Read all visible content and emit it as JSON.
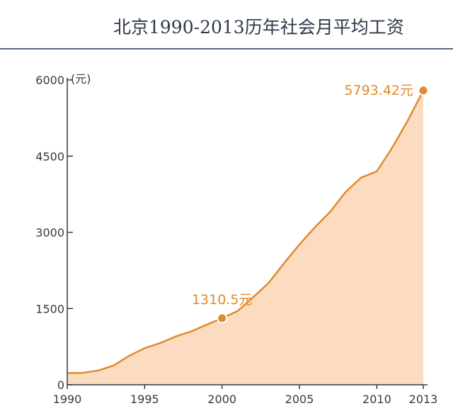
{
  "chart_data": {
    "type": "area",
    "title": "北京1990-2013历年社会月平均工资",
    "ylabel": "(元)",
    "ylim": [
      0,
      6000
    ],
    "yticks": [
      0,
      1500,
      3000,
      4500,
      6000
    ],
    "ytick_labels": [
      "0",
      "1500",
      "3000",
      "4500",
      "6000"
    ],
    "xlim": [
      1990,
      2013
    ],
    "xticks": [
      1990,
      1995,
      2000,
      2005,
      2010,
      2013
    ],
    "xtick_labels": [
      "1990",
      "1995",
      "2000",
      "2005",
      "2010",
      "2013"
    ],
    "series": [
      {
        "x": [
          1990,
          1991,
          1992,
          1993,
          1994,
          1995,
          1996,
          1997,
          1998,
          1999,
          2000,
          2001,
          2002,
          2003,
          2004,
          2005,
          2006,
          2007,
          2008,
          2009,
          2010,
          2011,
          2012,
          2013
        ],
        "values": [
          230,
          235,
          280,
          380,
          570,
          720,
          820,
          950,
          1050,
          1180,
          1310.5,
          1450,
          1720,
          2000,
          2390,
          2760,
          3100,
          3410,
          3800,
          4080,
          4200,
          4670,
          5200,
          5793.42
        ]
      }
    ],
    "annotations": [
      {
        "x": 2000,
        "y": 1310.5,
        "label": "1310.5元"
      },
      {
        "x": 2013,
        "y": 5793.42,
        "label": "5793.42元"
      }
    ],
    "colors": {
      "line": "#e38a2c",
      "fill": "#fbdcc0",
      "marker": "#e38a2c",
      "annotation": "#e38a2c",
      "title": "#2e3a4a",
      "rule": "#5a6a80",
      "axis": "#3a3a3a"
    },
    "grid": false
  }
}
